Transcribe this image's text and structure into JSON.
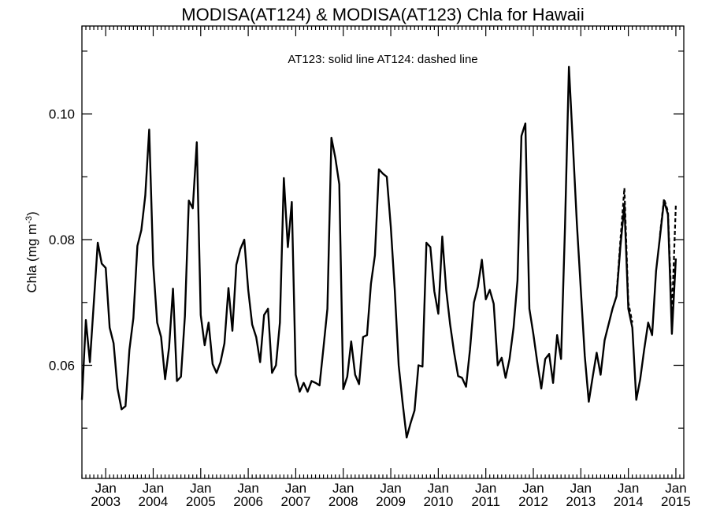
{
  "chart_data": {
    "type": "line",
    "title": "MODISA(AT124) & MODISA(AT123)  Chla for Hawaii",
    "annotation": "AT123: solid line   AT124: dashed line",
    "xlabel": "",
    "ylabel": "Chla (mg m",
    "ylabel_sup": "-3",
    "ylabel_close": ")",
    "x_axis": {
      "start": "2002-07",
      "end": "2015-03",
      "tick_month_label": "Jan",
      "year_labels": [
        "2003",
        "2004",
        "2005",
        "2006",
        "2007",
        "2008",
        "2009",
        "2010",
        "2011",
        "2012",
        "2013",
        "2014",
        "2015"
      ]
    },
    "y_axis": {
      "ylim": [
        0.042,
        0.114
      ],
      "major_ticks": [
        0.06,
        0.08,
        0.1
      ],
      "tick_labels": [
        "0.06",
        "0.08",
        "0.10"
      ],
      "minor_ticks": [
        0.05,
        0.07,
        0.09,
        0.11
      ]
    },
    "series": [
      {
        "name": "AT123",
        "style": "solid",
        "color": "#000000",
        "points": [
          [
            "2002-07",
            0.0545
          ],
          [
            "2002-08",
            0.0672
          ],
          [
            "2002-09",
            0.0605
          ],
          [
            "2002-10",
            0.07
          ],
          [
            "2002-11",
            0.0795
          ],
          [
            "2002-12",
            0.0762
          ],
          [
            "2003-01",
            0.0755
          ],
          [
            "2003-02",
            0.066
          ],
          [
            "2003-03",
            0.0635
          ],
          [
            "2003-04",
            0.0563
          ],
          [
            "2003-05",
            0.053
          ],
          [
            "2003-06",
            0.0535
          ],
          [
            "2003-07",
            0.0625
          ],
          [
            "2003-08",
            0.0675
          ],
          [
            "2003-09",
            0.079
          ],
          [
            "2003-10",
            0.0815
          ],
          [
            "2003-11",
            0.087
          ],
          [
            "2003-12",
            0.0975
          ],
          [
            "2004-01",
            0.076
          ],
          [
            "2004-02",
            0.0668
          ],
          [
            "2004-03",
            0.0645
          ],
          [
            "2004-04",
            0.0578
          ],
          [
            "2004-05",
            0.0628
          ],
          [
            "2004-06",
            0.0722
          ],
          [
            "2004-07",
            0.0575
          ],
          [
            "2004-08",
            0.0582
          ],
          [
            "2004-09",
            0.0678
          ],
          [
            "2004-10",
            0.0862
          ],
          [
            "2004-11",
            0.085
          ],
          [
            "2004-12",
            0.0955
          ],
          [
            "2005-01",
            0.068
          ],
          [
            "2005-02",
            0.0632
          ],
          [
            "2005-03",
            0.0668
          ],
          [
            "2005-04",
            0.0602
          ],
          [
            "2005-05",
            0.0588
          ],
          [
            "2005-06",
            0.0605
          ],
          [
            "2005-07",
            0.0635
          ],
          [
            "2005-08",
            0.0723
          ],
          [
            "2005-09",
            0.0655
          ],
          [
            "2005-10",
            0.076
          ],
          [
            "2005-11",
            0.0785
          ],
          [
            "2005-12",
            0.08
          ],
          [
            "2006-01",
            0.072
          ],
          [
            "2006-02",
            0.0665
          ],
          [
            "2006-03",
            0.0645
          ],
          [
            "2006-04",
            0.0605
          ],
          [
            "2006-05",
            0.068
          ],
          [
            "2006-06",
            0.069
          ],
          [
            "2006-07",
            0.0588
          ],
          [
            "2006-08",
            0.06
          ],
          [
            "2006-09",
            0.0668
          ],
          [
            "2006-10",
            0.0898
          ],
          [
            "2006-11",
            0.0788
          ],
          [
            "2006-12",
            0.086
          ],
          [
            "2007-01",
            0.0585
          ],
          [
            "2007-02",
            0.0558
          ],
          [
            "2007-03",
            0.0572
          ],
          [
            "2007-04",
            0.0558
          ],
          [
            "2007-05",
            0.0575
          ],
          [
            "2007-06",
            0.0572
          ],
          [
            "2007-07",
            0.0568
          ],
          [
            "2007-08",
            0.0628
          ],
          [
            "2007-09",
            0.069
          ],
          [
            "2007-10",
            0.0962
          ],
          [
            "2007-11",
            0.093
          ],
          [
            "2007-12",
            0.0888
          ],
          [
            "2008-01",
            0.0562
          ],
          [
            "2008-02",
            0.0582
          ],
          [
            "2008-03",
            0.0638
          ],
          [
            "2008-04",
            0.0585
          ],
          [
            "2008-05",
            0.057
          ],
          [
            "2008-06",
            0.0645
          ],
          [
            "2008-07",
            0.0648
          ],
          [
            "2008-08",
            0.073
          ],
          [
            "2008-09",
            0.0775
          ],
          [
            "2008-10",
            0.0912
          ],
          [
            "2008-11",
            0.0905
          ],
          [
            "2008-12",
            0.09
          ],
          [
            "2009-01",
            0.082
          ],
          [
            "2009-02",
            0.072
          ],
          [
            "2009-03",
            0.06
          ],
          [
            "2009-04",
            0.054
          ],
          [
            "2009-05",
            0.0485
          ],
          [
            "2009-06",
            0.0508
          ],
          [
            "2009-07",
            0.0528
          ],
          [
            "2009-08",
            0.06
          ],
          [
            "2009-09",
            0.0598
          ],
          [
            "2009-10",
            0.0795
          ],
          [
            "2009-11",
            0.0788
          ],
          [
            "2009-12",
            0.0718
          ],
          [
            "2010-01",
            0.0682
          ],
          [
            "2010-02",
            0.0805
          ],
          [
            "2010-03",
            0.072
          ],
          [
            "2010-04",
            0.0665
          ],
          [
            "2010-05",
            0.062
          ],
          [
            "2010-06",
            0.0583
          ],
          [
            "2010-07",
            0.058
          ],
          [
            "2010-08",
            0.0566
          ],
          [
            "2010-09",
            0.0625
          ],
          [
            "2010-10",
            0.07
          ],
          [
            "2010-11",
            0.0725
          ],
          [
            "2010-12",
            0.0768
          ],
          [
            "2011-01",
            0.0705
          ],
          [
            "2011-02",
            0.072
          ],
          [
            "2011-03",
            0.0698
          ],
          [
            "2011-04",
            0.06
          ],
          [
            "2011-05",
            0.0612
          ],
          [
            "2011-06",
            0.058
          ],
          [
            "2011-07",
            0.061
          ],
          [
            "2011-08",
            0.066
          ],
          [
            "2011-09",
            0.0735
          ],
          [
            "2011-10",
            0.0965
          ],
          [
            "2011-11",
            0.0985
          ],
          [
            "2011-12",
            0.069
          ],
          [
            "2012-01",
            0.065
          ],
          [
            "2012-02",
            0.0605
          ],
          [
            "2012-03",
            0.0563
          ],
          [
            "2012-04",
            0.061
          ],
          [
            "2012-05",
            0.0618
          ],
          [
            "2012-06",
            0.0572
          ],
          [
            "2012-07",
            0.0648
          ],
          [
            "2012-08",
            0.061
          ],
          [
            "2012-09",
            0.082
          ],
          [
            "2012-10",
            0.1075
          ],
          [
            "2012-11",
            0.095
          ],
          [
            "2012-12",
            0.0825
          ],
          [
            "2013-01",
            0.072
          ],
          [
            "2013-02",
            0.0615
          ],
          [
            "2013-03",
            0.0542
          ],
          [
            "2013-04",
            0.0582
          ],
          [
            "2013-05",
            0.062
          ],
          [
            "2013-06",
            0.0585
          ],
          [
            "2013-07",
            0.064
          ],
          [
            "2013-08",
            0.0665
          ],
          [
            "2013-09",
            0.069
          ],
          [
            "2013-10",
            0.071
          ],
          [
            "2013-11",
            0.079
          ],
          [
            "2013-12",
            0.0855
          ],
          [
            "2014-01",
            0.069
          ],
          [
            "2014-02",
            0.066
          ],
          [
            "2014-03",
            0.0545
          ],
          [
            "2014-04",
            0.0578
          ],
          [
            "2014-05",
            0.0625
          ],
          [
            "2014-06",
            0.0668
          ],
          [
            "2014-07",
            0.0648
          ],
          [
            "2014-08",
            0.075
          ],
          [
            "2014-09",
            0.0805
          ],
          [
            "2014-10",
            0.0862
          ],
          [
            "2014-11",
            0.084
          ],
          [
            "2014-12",
            0.065
          ],
          [
            "2015-01",
            0.077
          ]
        ]
      },
      {
        "name": "AT124",
        "style": "dashed",
        "color": "#000000",
        "points": [
          [
            "2013-10",
            0.0712
          ],
          [
            "2013-11",
            0.08
          ],
          [
            "2013-12",
            0.0882
          ],
          [
            "2014-01",
            0.07
          ],
          [
            "2014-02",
            0.0668
          ],
          [
            "2014-09",
            0.0808
          ],
          [
            "2014-10",
            0.0865
          ],
          [
            "2014-11",
            0.0845
          ],
          [
            "2014-12",
            0.068
          ],
          [
            "2015-01",
            0.0855
          ]
        ]
      }
    ],
    "legend": "annotation text at top center",
    "grid": false
  }
}
